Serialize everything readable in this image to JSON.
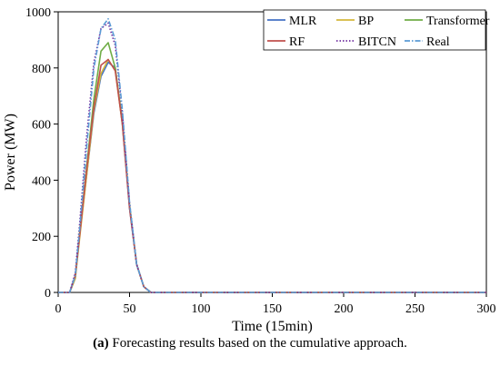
{
  "caption": {
    "prefix": "(a)",
    "text": " Forecasting results based on the cumulative approach."
  },
  "chart_data": {
    "type": "line",
    "title": "",
    "xlabel": "Time (15min)",
    "ylabel": "Power (MW)",
    "xlim": [
      0,
      300
    ],
    "ylim": [
      0,
      1000
    ],
    "xticks": [
      0,
      50,
      100,
      150,
      200,
      250,
      300
    ],
    "yticks": [
      0,
      200,
      400,
      600,
      800,
      1000
    ],
    "grid": false,
    "legend_position": "top-right",
    "series": [
      {
        "name": "MLR",
        "color": "#4472c4",
        "dash": "solid",
        "x": [
          0,
          8,
          12,
          15,
          20,
          25,
          30,
          35,
          40,
          45,
          50,
          55,
          60,
          65,
          300
        ],
        "y": [
          0,
          0,
          50,
          200,
          420,
          640,
          770,
          820,
          800,
          600,
          300,
          100,
          20,
          0,
          0
        ]
      },
      {
        "name": "BP",
        "color": "#d4b83c",
        "dash": "solid",
        "x": [
          0,
          8,
          12,
          15,
          20,
          25,
          30,
          35,
          40,
          45,
          50,
          55,
          60,
          65,
          300
        ],
        "y": [
          0,
          0,
          50,
          190,
          420,
          650,
          780,
          830,
          790,
          600,
          310,
          100,
          20,
          0,
          0
        ]
      },
      {
        "name": "Transformer",
        "color": "#70ad47",
        "dash": "solid",
        "x": [
          0,
          8,
          12,
          15,
          20,
          25,
          30,
          35,
          40,
          45,
          50,
          55,
          60,
          65,
          300
        ],
        "y": [
          0,
          0,
          60,
          210,
          450,
          690,
          860,
          890,
          800,
          610,
          310,
          100,
          20,
          0,
          0
        ]
      },
      {
        "name": "RF",
        "color": "#c0504d",
        "dash": "solid",
        "x": [
          0,
          8,
          12,
          15,
          20,
          25,
          30,
          35,
          40,
          45,
          50,
          55,
          60,
          65,
          300
        ],
        "y": [
          0,
          0,
          60,
          200,
          440,
          660,
          810,
          830,
          790,
          600,
          300,
          100,
          20,
          0,
          0
        ]
      },
      {
        "name": "BITCN",
        "color": "#7030a0",
        "dash": "dot",
        "x": [
          0,
          8,
          12,
          15,
          20,
          25,
          30,
          35,
          40,
          45,
          50,
          55,
          60,
          65,
          300
        ],
        "y": [
          0,
          0,
          70,
          240,
          560,
          820,
          940,
          960,
          880,
          640,
          320,
          100,
          20,
          0,
          0
        ]
      },
      {
        "name": "Real",
        "color": "#5b9bd5",
        "dash": "dashdot",
        "x": [
          0,
          8,
          12,
          15,
          20,
          25,
          30,
          35,
          40,
          45,
          50,
          55,
          60,
          65,
          300
        ],
        "y": [
          0,
          0,
          60,
          220,
          520,
          800,
          940,
          975,
          900,
          650,
          320,
          100,
          20,
          0,
          0
        ]
      }
    ]
  }
}
